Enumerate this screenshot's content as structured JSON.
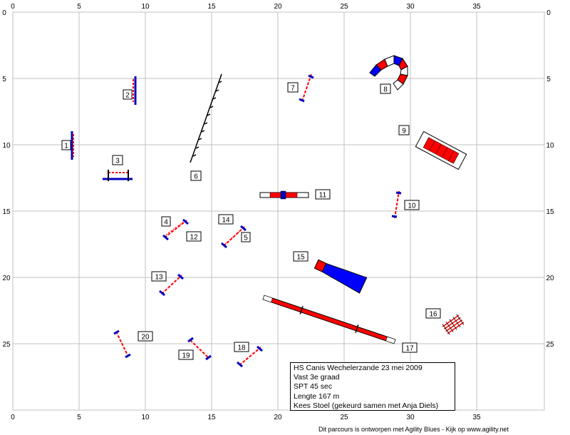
{
  "grid": {
    "x_ticks": [
      "0",
      "5",
      "10",
      "15",
      "20",
      "25",
      "30",
      "35"
    ],
    "y_ticks": [
      "0",
      "5",
      "10",
      "15",
      "20",
      "25"
    ]
  },
  "obstacles": [
    {
      "num": "1",
      "type": "jump"
    },
    {
      "num": "2",
      "type": "jump"
    },
    {
      "num": "3",
      "type": "jump"
    },
    {
      "num": "4",
      "type": "jump"
    },
    {
      "num": "5",
      "type": "jump"
    },
    {
      "num": "6",
      "type": "weave-poles"
    },
    {
      "num": "7",
      "type": "jump"
    },
    {
      "num": "8",
      "type": "tunnel"
    },
    {
      "num": "9",
      "type": "table"
    },
    {
      "num": "10",
      "type": "jump"
    },
    {
      "num": "11",
      "type": "seesaw"
    },
    {
      "num": "12",
      "type": "jump"
    },
    {
      "num": "13",
      "type": "jump"
    },
    {
      "num": "14",
      "type": "jump"
    },
    {
      "num": "15",
      "type": "chute"
    },
    {
      "num": "16",
      "type": "tire"
    },
    {
      "num": "17",
      "type": "dog-walk"
    },
    {
      "num": "18",
      "type": "jump"
    },
    {
      "num": "19",
      "type": "jump"
    },
    {
      "num": "20",
      "type": "jump"
    }
  ],
  "info": {
    "line1": "HS Canis  Wechelerzande 23 mei 2009",
    "line2": "Vast 3e graad",
    "line3": "SPT 45 sec",
    "line4": "Lengte 167 m",
    "line5": "Kees Stoel (gekeurd samen met Anja Diels)"
  },
  "footer": "Dit parcours is ontworpen met Agility Blues - Kijk op www.agility.net",
  "colors": {
    "grid": "#c0c0c0",
    "bar_red": "#ff0000",
    "bar_blue": "#0000c0",
    "tunnel_red": "#ff0000",
    "tunnel_blue": "#0000ff"
  }
}
